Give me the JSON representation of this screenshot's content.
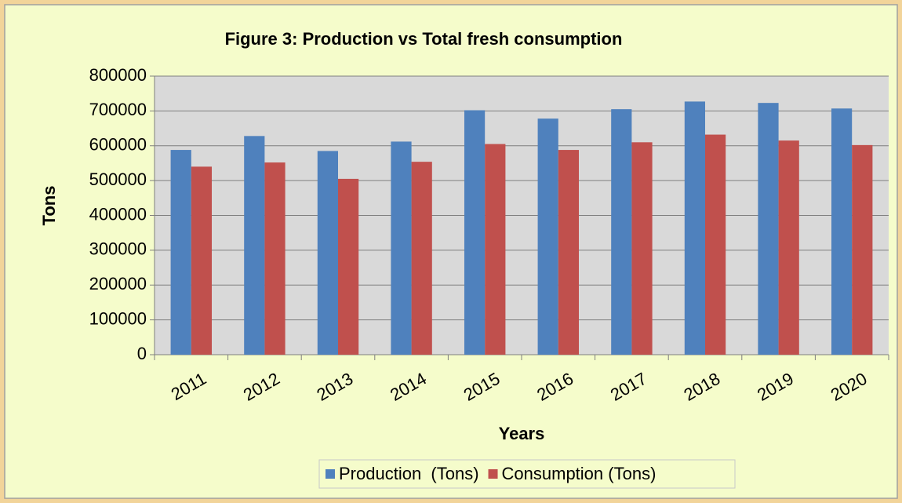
{
  "chart_data": {
    "type": "bar",
    "title": "Figure 3: Production vs Total fresh consumption",
    "x_label": "Years",
    "y_label": "Tons",
    "categories": [
      "2011",
      "2012",
      "2013",
      "2014",
      "2015",
      "2016",
      "2017",
      "2018",
      "2019",
      "2020"
    ],
    "series": [
      {
        "name": "Production  (Tons)",
        "color": "#4f81bd",
        "values": [
          588000,
          628000,
          585000,
          612000,
          702000,
          678000,
          705000,
          727000,
          723000,
          707000
        ]
      },
      {
        "name": "Consumption (Tons)",
        "color": "#c0504d",
        "values": [
          540000,
          552000,
          505000,
          554000,
          605000,
          588000,
          610000,
          632000,
          615000,
          602000
        ]
      }
    ],
    "ylim": [
      0,
      800000
    ],
    "yticks": [
      0,
      100000,
      200000,
      300000,
      400000,
      500000,
      600000,
      700000,
      800000
    ],
    "grid": true,
    "legend": "bottom"
  }
}
